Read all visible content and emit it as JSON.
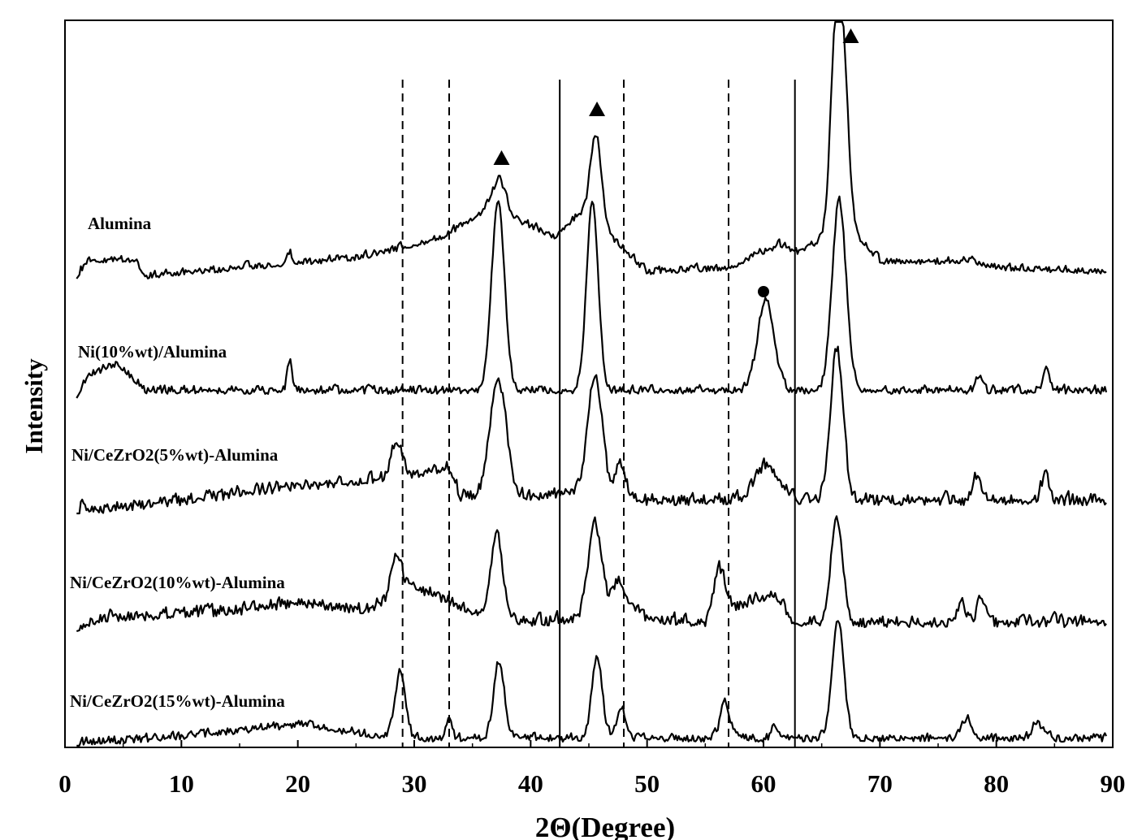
{
  "chart_data": {
    "type": "line",
    "title": "",
    "xlabel": "2Θ(Degree)",
    "ylabel": "Intensity",
    "xlim": [
      0,
      90
    ],
    "x_ticks": [
      "0",
      "10",
      "20",
      "30",
      "40",
      "50",
      "60",
      "70",
      "80",
      "90"
    ],
    "y_ticks": [],
    "grid": false,
    "reference_lines": {
      "solid": [
        42.5,
        62.7
      ],
      "dashed": [
        29.0,
        33.0,
        48.0,
        57.0
      ]
    },
    "peak_markers": [
      {
        "symbol": "triangle",
        "x": 37.5,
        "series": "Alumina"
      },
      {
        "symbol": "triangle",
        "x": 45.7,
        "series": "Alumina"
      },
      {
        "symbol": "triangle",
        "x": 67.5,
        "series": "Alumina"
      },
      {
        "symbol": "circle",
        "x": 60.0,
        "series": "Ni(10%wt)/Alumina"
      }
    ],
    "series": [
      {
        "name": "Alumina",
        "baseline": 0,
        "noise": 8,
        "noise_seed": 11,
        "segments": [
          [
            1,
            0
          ],
          [
            2,
            20
          ],
          [
            6,
            18
          ],
          [
            7,
            0
          ],
          [
            15,
            10
          ],
          [
            25,
            22
          ],
          [
            32,
            45
          ],
          [
            36,
            78
          ],
          [
            40,
            62
          ],
          [
            42,
            48
          ],
          [
            44,
            75
          ],
          [
            47.5,
            40
          ],
          [
            50,
            5
          ],
          [
            57,
            10
          ],
          [
            60,
            30
          ],
          [
            63,
            30
          ],
          [
            65,
            45
          ],
          [
            67,
            55
          ],
          [
            69,
            35
          ],
          [
            70,
            18
          ],
          [
            78,
            18
          ],
          [
            80,
            10
          ],
          [
            90,
            5
          ]
        ],
        "peaks": [
          {
            "center": 37.3,
            "height": 45,
            "width": 0.6
          },
          {
            "center": 45.6,
            "height": 115,
            "width": 0.5
          },
          {
            "center": 66.2,
            "height": 235,
            "width": 0.45
          },
          {
            "center": 66.9,
            "height": 175,
            "width": 0.45
          },
          {
            "center": 61.5,
            "height": 8,
            "width": 0.5
          },
          {
            "center": 19.3,
            "height": 15,
            "width": 0.2
          }
        ]
      },
      {
        "name": "Ni(10%wt)/Alumina",
        "baseline": 0,
        "noise": 9,
        "noise_seed": 23,
        "segments": [
          [
            1,
            0
          ],
          [
            2,
            25
          ],
          [
            4.5,
            38
          ],
          [
            7,
            5
          ],
          [
            90,
            5
          ]
        ],
        "peaks": [
          {
            "center": 37.2,
            "height": 235,
            "width": 0.55
          },
          {
            "center": 45.3,
            "height": 235,
            "width": 0.5
          },
          {
            "center": 60.2,
            "height": 112,
            "width": 0.7
          },
          {
            "center": 66.5,
            "height": 235,
            "width": 0.6
          },
          {
            "center": 19.3,
            "height": 40,
            "width": 0.2
          },
          {
            "center": 84.3,
            "height": 28,
            "width": 0.3
          },
          {
            "center": 78.5,
            "height": 20,
            "width": 0.3
          }
        ]
      },
      {
        "name": "Ni/CeZrO2(5%wt)-Alumina",
        "baseline": 0,
        "noise": 13,
        "noise_seed": 37,
        "segments": [
          [
            1,
            0
          ],
          [
            3,
            0
          ],
          [
            10,
            10
          ],
          [
            20,
            28
          ],
          [
            27,
            35
          ],
          [
            33,
            50
          ],
          [
            34,
            15
          ],
          [
            40,
            15
          ],
          [
            46,
            25
          ],
          [
            50,
            10
          ],
          [
            90,
            10
          ]
        ],
        "peaks": [
          {
            "center": 28.5,
            "height": 45,
            "width": 0.5
          },
          {
            "center": 37.2,
            "height": 145,
            "width": 0.7
          },
          {
            "center": 45.5,
            "height": 140,
            "width": 0.6
          },
          {
            "center": 47.7,
            "height": 40,
            "width": 0.4
          },
          {
            "center": 60.3,
            "height": 45,
            "width": 1.0
          },
          {
            "center": 66.3,
            "height": 185,
            "width": 0.55
          },
          {
            "center": 78.3,
            "height": 30,
            "width": 0.3
          },
          {
            "center": 84.2,
            "height": 35,
            "width": 0.3
          }
        ]
      },
      {
        "name": "Ni/CeZrO2(10%wt)-Alumina",
        "baseline": 0,
        "noise": 13,
        "noise_seed": 51,
        "segments": [
          [
            1,
            0
          ],
          [
            3,
            10
          ],
          [
            15,
            20
          ],
          [
            20,
            30
          ],
          [
            26,
            20
          ],
          [
            30,
            50
          ],
          [
            33,
            30
          ],
          [
            35,
            20
          ],
          [
            40,
            5
          ],
          [
            44,
            10
          ],
          [
            48,
            40
          ],
          [
            50,
            10
          ],
          [
            55,
            5
          ],
          [
            56,
            50
          ],
          [
            57.5,
            25
          ],
          [
            61,
            40
          ],
          [
            62.5,
            5
          ],
          [
            90,
            5
          ]
        ],
        "peaks": [
          {
            "center": 28.5,
            "height": 50,
            "width": 0.45
          },
          {
            "center": 37.1,
            "height": 100,
            "width": 0.5
          },
          {
            "center": 45.5,
            "height": 105,
            "width": 0.55
          },
          {
            "center": 47.5,
            "height": 20,
            "width": 0.3
          },
          {
            "center": 56.3,
            "height": 25,
            "width": 0.4
          },
          {
            "center": 66.3,
            "height": 130,
            "width": 0.5
          },
          {
            "center": 77.0,
            "height": 30,
            "width": 0.3
          },
          {
            "center": 78.7,
            "height": 30,
            "width": 0.3
          }
        ]
      },
      {
        "name": "Ni/CeZrO2(15%wt)-Alumina",
        "baseline": 0,
        "noise": 9,
        "noise_seed": 67,
        "segments": [
          [
            1,
            0
          ],
          [
            8,
            5
          ],
          [
            15,
            15
          ],
          [
            20,
            22
          ],
          [
            26,
            10
          ],
          [
            30,
            5
          ],
          [
            90,
            5
          ]
        ],
        "peaks": [
          {
            "center": 28.8,
            "height": 80,
            "width": 0.45
          },
          {
            "center": 33.0,
            "height": 28,
            "width": 0.25
          },
          {
            "center": 37.3,
            "height": 95,
            "width": 0.45
          },
          {
            "center": 45.7,
            "height": 100,
            "width": 0.45
          },
          {
            "center": 47.8,
            "height": 40,
            "width": 0.35
          },
          {
            "center": 56.7,
            "height": 45,
            "width": 0.4
          },
          {
            "center": 61.0,
            "height": 15,
            "width": 0.3
          },
          {
            "center": 66.4,
            "height": 145,
            "width": 0.5
          },
          {
            "center": 77.5,
            "height": 25,
            "width": 0.4
          },
          {
            "center": 83.5,
            "height": 20,
            "width": 0.4
          }
        ]
      }
    ]
  }
}
